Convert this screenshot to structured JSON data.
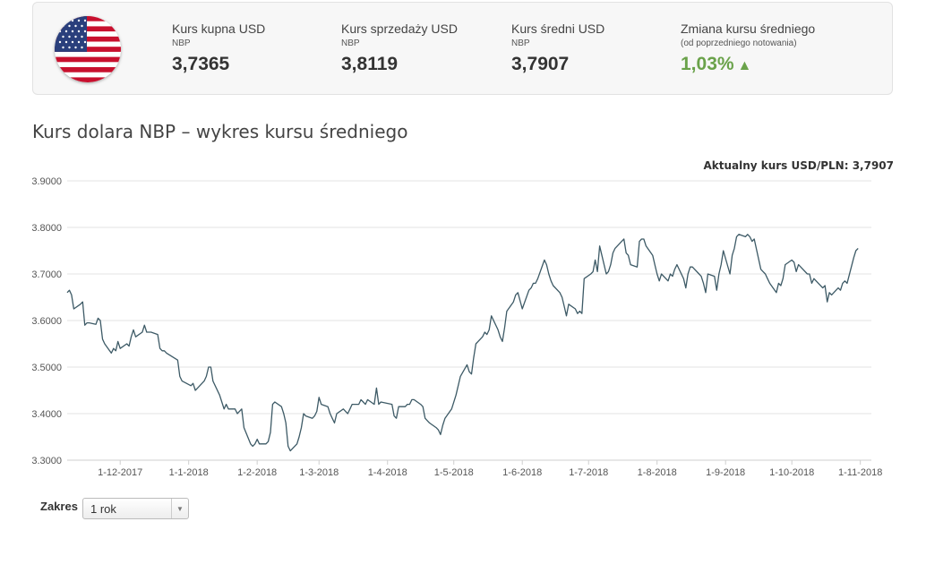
{
  "rates": {
    "buy": {
      "label": "Kurs kupna USD",
      "source": "NBP",
      "value": "3,7365"
    },
    "sell": {
      "label": "Kurs sprzedaży USD",
      "source": "NBP",
      "value": "3,8119"
    },
    "mid": {
      "label": "Kurs średni USD",
      "source": "NBP",
      "value": "3,7907"
    },
    "change": {
      "label": "Zmiana kursu średniego",
      "sublabel": "(od poprzedniego notowania)",
      "value": "1,03%",
      "arrow": "▲",
      "color": "#6aa24a"
    }
  },
  "flag_icon": "us-flag-icon",
  "section_title": "Kurs dolara NBP – wykres kursu średniego",
  "current_rate_label": "Aktualny kurs USD/PLN: 3,7907",
  "range": {
    "label": "Zakres",
    "selected": "1 rok"
  },
  "chart_data": {
    "type": "line",
    "title": "",
    "xlabel": "",
    "ylabel": "",
    "ylim": [
      3.3,
      3.9
    ],
    "yticks": [
      "3.3000",
      "3.4000",
      "3.5000",
      "3.6000",
      "3.7000",
      "3.8000",
      "3.9000"
    ],
    "xlim": [
      "2017-11-07",
      "2018-11-06"
    ],
    "xticks": [
      {
        "date": "2017-12-01",
        "label": "1-12-2017"
      },
      {
        "date": "2018-01-01",
        "label": "1-1-2018"
      },
      {
        "date": "2018-02-01",
        "label": "1-2-2018"
      },
      {
        "date": "2018-03-01",
        "label": "1-3-2018"
      },
      {
        "date": "2018-04-01",
        "label": "1-4-2018"
      },
      {
        "date": "2018-05-01",
        "label": "1-5-2018"
      },
      {
        "date": "2018-06-01",
        "label": "1-6-2018"
      },
      {
        "date": "2018-07-01",
        "label": "1-7-2018"
      },
      {
        "date": "2018-08-01",
        "label": "1-8-2018"
      },
      {
        "date": "2018-09-01",
        "label": "1-9-2018"
      },
      {
        "date": "2018-10-01",
        "label": "1-10-2018"
      },
      {
        "date": "2018-11-01",
        "label": "1-11-2018"
      }
    ],
    "grid": true,
    "line_color": "#3d5a66",
    "series": [
      {
        "points": [
          [
            "2017-11-07",
            3.66
          ],
          [
            "2017-11-08",
            3.665
          ],
          [
            "2017-11-09",
            3.655
          ],
          [
            "2017-11-10",
            3.625
          ],
          [
            "2017-11-13",
            3.635
          ],
          [
            "2017-11-14",
            3.64
          ],
          [
            "2017-11-15",
            3.59
          ],
          [
            "2017-11-16",
            3.595
          ],
          [
            "2017-11-17",
            3.595
          ],
          [
            "2017-11-20",
            3.592
          ],
          [
            "2017-11-21",
            3.605
          ],
          [
            "2017-11-22",
            3.6
          ],
          [
            "2017-11-23",
            3.56
          ],
          [
            "2017-11-24",
            3.55
          ],
          [
            "2017-11-27",
            3.53
          ],
          [
            "2017-11-28",
            3.54
          ],
          [
            "2017-11-29",
            3.535
          ],
          [
            "2017-11-30",
            3.555
          ],
          [
            "2017-12-01",
            3.54
          ],
          [
            "2017-12-04",
            3.55
          ],
          [
            "2017-12-05",
            3.545
          ],
          [
            "2017-12-06",
            3.565
          ],
          [
            "2017-12-07",
            3.58
          ],
          [
            "2017-12-08",
            3.565
          ],
          [
            "2017-12-11",
            3.575
          ],
          [
            "2017-12-12",
            3.59
          ],
          [
            "2017-12-13",
            3.575
          ],
          [
            "2017-12-14",
            3.575
          ],
          [
            "2017-12-15",
            3.575
          ],
          [
            "2017-12-18",
            3.57
          ],
          [
            "2017-12-19",
            3.54
          ],
          [
            "2017-12-20",
            3.535
          ],
          [
            "2017-12-21",
            3.535
          ],
          [
            "2017-12-22",
            3.53
          ],
          [
            "2017-12-27",
            3.515
          ],
          [
            "2017-12-28",
            3.48
          ],
          [
            "2017-12-29",
            3.47
          ],
          [
            "2018-01-02",
            3.46
          ],
          [
            "2018-01-03",
            3.465
          ],
          [
            "2018-01-04",
            3.45
          ],
          [
            "2018-01-05",
            3.455
          ],
          [
            "2018-01-08",
            3.47
          ],
          [
            "2018-01-09",
            3.48
          ],
          [
            "2018-01-10",
            3.5
          ],
          [
            "2018-01-11",
            3.5
          ],
          [
            "2018-01-12",
            3.47
          ],
          [
            "2018-01-15",
            3.44
          ],
          [
            "2018-01-16",
            3.425
          ],
          [
            "2018-01-17",
            3.41
          ],
          [
            "2018-01-18",
            3.42
          ],
          [
            "2018-01-19",
            3.41
          ],
          [
            "2018-01-22",
            3.41
          ],
          [
            "2018-01-23",
            3.4
          ],
          [
            "2018-01-24",
            3.405
          ],
          [
            "2018-01-25",
            3.41
          ],
          [
            "2018-01-26",
            3.37
          ],
          [
            "2018-01-29",
            3.335
          ],
          [
            "2018-01-30",
            3.33
          ],
          [
            "2018-01-31",
            3.335
          ],
          [
            "2018-02-01",
            3.345
          ],
          [
            "2018-02-02",
            3.335
          ],
          [
            "2018-02-05",
            3.335
          ],
          [
            "2018-02-06",
            3.34
          ],
          [
            "2018-02-07",
            3.36
          ],
          [
            "2018-02-08",
            3.42
          ],
          [
            "2018-02-09",
            3.425
          ],
          [
            "2018-02-12",
            3.415
          ],
          [
            "2018-02-13",
            3.4
          ],
          [
            "2018-02-14",
            3.38
          ],
          [
            "2018-02-15",
            3.33
          ],
          [
            "2018-02-16",
            3.32
          ],
          [
            "2018-02-19",
            3.335
          ],
          [
            "2018-02-20",
            3.35
          ],
          [
            "2018-02-21",
            3.37
          ],
          [
            "2018-02-22",
            3.4
          ],
          [
            "2018-02-23",
            3.395
          ],
          [
            "2018-02-26",
            3.39
          ],
          [
            "2018-02-27",
            3.395
          ],
          [
            "2018-02-28",
            3.405
          ],
          [
            "2018-03-01",
            3.435
          ],
          [
            "2018-03-02",
            3.42
          ],
          [
            "2018-03-05",
            3.415
          ],
          [
            "2018-03-06",
            3.4
          ],
          [
            "2018-03-07",
            3.39
          ],
          [
            "2018-03-08",
            3.38
          ],
          [
            "2018-03-09",
            3.4
          ],
          [
            "2018-03-12",
            3.41
          ],
          [
            "2018-03-13",
            3.405
          ],
          [
            "2018-03-14",
            3.4
          ],
          [
            "2018-03-15",
            3.41
          ],
          [
            "2018-03-16",
            3.42
          ],
          [
            "2018-03-19",
            3.42
          ],
          [
            "2018-03-20",
            3.43
          ],
          [
            "2018-03-21",
            3.425
          ],
          [
            "2018-03-22",
            3.42
          ],
          [
            "2018-03-23",
            3.43
          ],
          [
            "2018-03-26",
            3.42
          ],
          [
            "2018-03-27",
            3.455
          ],
          [
            "2018-03-28",
            3.42
          ],
          [
            "2018-03-29",
            3.425
          ],
          [
            "2018-04-03",
            3.42
          ],
          [
            "2018-04-04",
            3.395
          ],
          [
            "2018-04-05",
            3.39
          ],
          [
            "2018-04-06",
            3.415
          ],
          [
            "2018-04-09",
            3.415
          ],
          [
            "2018-04-10",
            3.42
          ],
          [
            "2018-04-11",
            3.42
          ],
          [
            "2018-04-12",
            3.43
          ],
          [
            "2018-04-13",
            3.43
          ],
          [
            "2018-04-16",
            3.42
          ],
          [
            "2018-04-17",
            3.415
          ],
          [
            "2018-04-18",
            3.39
          ],
          [
            "2018-04-19",
            3.385
          ],
          [
            "2018-04-20",
            3.38
          ],
          [
            "2018-04-23",
            3.37
          ],
          [
            "2018-04-24",
            3.365
          ],
          [
            "2018-04-25",
            3.355
          ],
          [
            "2018-04-26",
            3.375
          ],
          [
            "2018-04-27",
            3.39
          ],
          [
            "2018-04-30",
            3.41
          ],
          [
            "2018-05-02",
            3.44
          ],
          [
            "2018-05-04",
            3.48
          ],
          [
            "2018-05-07",
            3.505
          ],
          [
            "2018-05-08",
            3.49
          ],
          [
            "2018-05-09",
            3.485
          ],
          [
            "2018-05-10",
            3.52
          ],
          [
            "2018-05-11",
            3.55
          ],
          [
            "2018-05-14",
            3.565
          ],
          [
            "2018-05-15",
            3.575
          ],
          [
            "2018-05-16",
            3.57
          ],
          [
            "2018-05-17",
            3.58
          ],
          [
            "2018-05-18",
            3.61
          ],
          [
            "2018-05-21",
            3.58
          ],
          [
            "2018-05-22",
            3.565
          ],
          [
            "2018-05-23",
            3.555
          ],
          [
            "2018-05-24",
            3.585
          ],
          [
            "2018-05-25",
            3.62
          ],
          [
            "2018-05-28",
            3.64
          ],
          [
            "2018-05-29",
            3.655
          ],
          [
            "2018-05-30",
            3.66
          ],
          [
            "2018-06-01",
            3.625
          ],
          [
            "2018-06-04",
            3.665
          ],
          [
            "2018-06-05",
            3.67
          ],
          [
            "2018-06-06",
            3.68
          ],
          [
            "2018-06-07",
            3.68
          ],
          [
            "2018-06-08",
            3.69
          ],
          [
            "2018-06-11",
            3.73
          ],
          [
            "2018-06-12",
            3.72
          ],
          [
            "2018-06-13",
            3.7
          ],
          [
            "2018-06-14",
            3.685
          ],
          [
            "2018-06-15",
            3.675
          ],
          [
            "2018-06-18",
            3.66
          ],
          [
            "2018-06-19",
            3.65
          ],
          [
            "2018-06-20",
            3.63
          ],
          [
            "2018-06-21",
            3.61
          ],
          [
            "2018-06-22",
            3.635
          ],
          [
            "2018-06-25",
            3.625
          ],
          [
            "2018-06-26",
            3.615
          ],
          [
            "2018-06-27",
            3.62
          ],
          [
            "2018-06-28",
            3.615
          ],
          [
            "2018-06-29",
            3.69
          ],
          [
            "2018-07-02",
            3.7
          ],
          [
            "2018-07-03",
            3.705
          ],
          [
            "2018-07-04",
            3.73
          ],
          [
            "2018-07-05",
            3.705
          ],
          [
            "2018-07-06",
            3.76
          ],
          [
            "2018-07-09",
            3.7
          ],
          [
            "2018-07-10",
            3.705
          ],
          [
            "2018-07-11",
            3.72
          ],
          [
            "2018-07-12",
            3.745
          ],
          [
            "2018-07-13",
            3.755
          ],
          [
            "2018-07-16",
            3.77
          ],
          [
            "2018-07-17",
            3.775
          ],
          [
            "2018-07-18",
            3.745
          ],
          [
            "2018-07-19",
            3.74
          ],
          [
            "2018-07-20",
            3.72
          ],
          [
            "2018-07-23",
            3.715
          ],
          [
            "2018-07-24",
            3.77
          ],
          [
            "2018-07-25",
            3.775
          ],
          [
            "2018-07-26",
            3.775
          ],
          [
            "2018-07-27",
            3.76
          ],
          [
            "2018-07-30",
            3.74
          ],
          [
            "2018-07-31",
            3.72
          ],
          [
            "2018-08-01",
            3.7
          ],
          [
            "2018-08-02",
            3.685
          ],
          [
            "2018-08-03",
            3.7
          ],
          [
            "2018-08-06",
            3.685
          ],
          [
            "2018-08-07",
            3.7
          ],
          [
            "2018-08-08",
            3.695
          ],
          [
            "2018-08-09",
            3.71
          ],
          [
            "2018-08-10",
            3.72
          ],
          [
            "2018-08-13",
            3.69
          ],
          [
            "2018-08-14",
            3.67
          ],
          [
            "2018-08-15",
            3.7
          ],
          [
            "2018-08-16",
            3.715
          ],
          [
            "2018-08-17",
            3.715
          ],
          [
            "2018-08-20",
            3.7
          ],
          [
            "2018-08-21",
            3.695
          ],
          [
            "2018-08-22",
            3.68
          ],
          [
            "2018-08-23",
            3.66
          ],
          [
            "2018-08-24",
            3.7
          ],
          [
            "2018-08-27",
            3.695
          ],
          [
            "2018-08-28",
            3.665
          ],
          [
            "2018-08-29",
            3.7
          ],
          [
            "2018-08-30",
            3.72
          ],
          [
            "2018-08-31",
            3.75
          ],
          [
            "2018-09-03",
            3.7
          ],
          [
            "2018-09-04",
            3.74
          ],
          [
            "2018-09-05",
            3.755
          ],
          [
            "2018-09-06",
            3.78
          ],
          [
            "2018-09-07",
            3.785
          ],
          [
            "2018-09-10",
            3.78
          ],
          [
            "2018-09-11",
            3.785
          ],
          [
            "2018-09-12",
            3.78
          ],
          [
            "2018-09-13",
            3.77
          ],
          [
            "2018-09-14",
            3.775
          ],
          [
            "2018-09-17",
            3.71
          ],
          [
            "2018-09-18",
            3.705
          ],
          [
            "2018-09-19",
            3.7
          ],
          [
            "2018-09-20",
            3.69
          ],
          [
            "2018-09-21",
            3.68
          ],
          [
            "2018-09-24",
            3.66
          ],
          [
            "2018-09-25",
            3.68
          ],
          [
            "2018-09-26",
            3.675
          ],
          [
            "2018-09-27",
            3.69
          ],
          [
            "2018-09-28",
            3.72
          ],
          [
            "2018-10-01",
            3.73
          ],
          [
            "2018-10-02",
            3.725
          ],
          [
            "2018-10-03",
            3.705
          ],
          [
            "2018-10-04",
            3.72
          ],
          [
            "2018-10-05",
            3.715
          ],
          [
            "2018-10-08",
            3.7
          ],
          [
            "2018-10-09",
            3.7
          ],
          [
            "2018-10-10",
            3.68
          ],
          [
            "2018-10-11",
            3.69
          ],
          [
            "2018-10-12",
            3.685
          ],
          [
            "2018-10-15",
            3.67
          ],
          [
            "2018-10-16",
            3.675
          ],
          [
            "2018-10-17",
            3.64
          ],
          [
            "2018-10-18",
            3.66
          ],
          [
            "2018-10-19",
            3.655
          ],
          [
            "2018-10-22",
            3.67
          ],
          [
            "2018-10-23",
            3.665
          ],
          [
            "2018-10-24",
            3.68
          ],
          [
            "2018-10-25",
            3.685
          ],
          [
            "2018-10-26",
            3.68
          ],
          [
            "2018-10-29",
            3.735
          ],
          [
            "2018-10-30",
            3.75
          ],
          [
            "2018-10-31",
            3.755
          ]
        ]
      }
    ]
  }
}
